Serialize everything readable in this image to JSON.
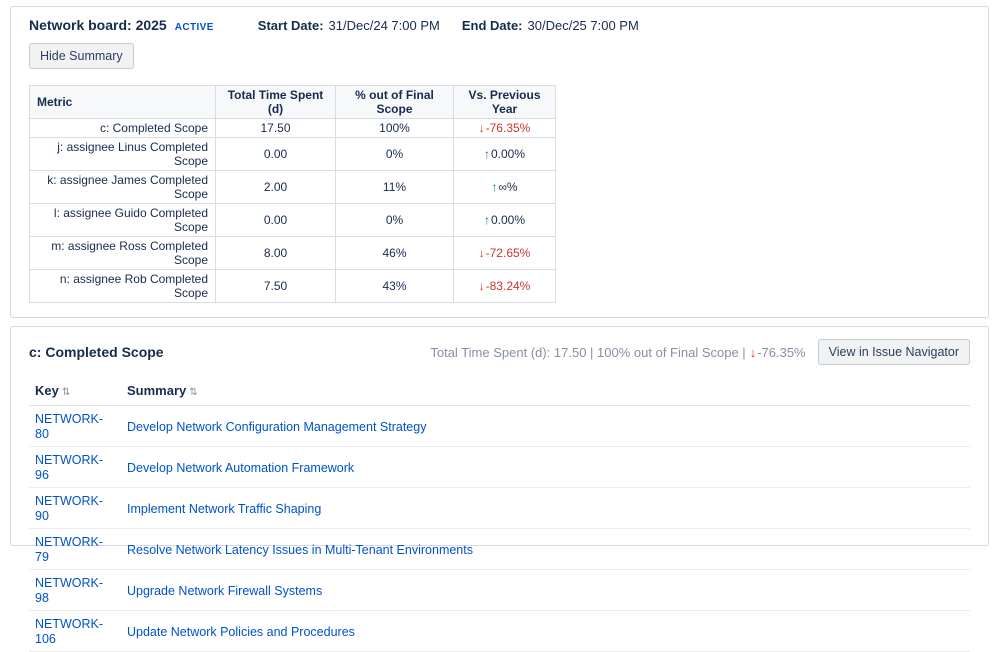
{
  "panel": {
    "title": "Network board: 2025",
    "badge": "ACTIVE",
    "start_date_label": "Start Date:",
    "start_date": "31/Dec/24 7:00 PM",
    "end_date_label": "End Date:",
    "end_date": "30/Dec/25 7:00 PM",
    "hide_summary_label": "Hide Summary"
  },
  "colors": {
    "link_blue": "#0052cc",
    "trend_down_red": "#de350b",
    "trend_up_green": "#00875a"
  },
  "icons": {
    "sort_icon": "⇅",
    "arrow_down": "↓",
    "arrow_up": "↑"
  },
  "metric_table": {
    "headers": [
      "Metric",
      "Total Time Spent (d)",
      "% out of Final Scope",
      "Vs. Previous Year"
    ],
    "rows": [
      {
        "metric": "c: Completed Scope",
        "time": "17.50",
        "pct": "100%",
        "dir": "down",
        "arrow": "↓",
        "trend": "-76.35%"
      },
      {
        "metric": "j: assignee Linus Completed Scope",
        "time": "0.00",
        "pct": "0%",
        "dir": "up",
        "arrow": "↑",
        "trend": "0.00%"
      },
      {
        "metric": "k: assignee James Completed Scope",
        "time": "2.00",
        "pct": "11%",
        "dir": "up",
        "arrow": "↑",
        "trend": "∞%"
      },
      {
        "metric": "l: assignee Guido Completed Scope",
        "time": "0.00",
        "pct": "0%",
        "dir": "up",
        "arrow": "↑",
        "trend": "0.00%"
      },
      {
        "metric": "m: assignee Ross Completed Scope",
        "time": "8.00",
        "pct": "46%",
        "dir": "down",
        "arrow": "↓",
        "trend": "-72.65%"
      },
      {
        "metric": "n: assignee Rob Completed Scope",
        "time": "7.50",
        "pct": "43%",
        "dir": "down",
        "arrow": "↓",
        "trend": "-83.24%"
      }
    ]
  },
  "detail": {
    "title": "c: Completed Scope",
    "stats": "Total Time Spent (d): 17.50 | 100% out of Final Scope |",
    "arrow": "↓",
    "trend": "-76.35%",
    "button_label": "View in Issue Navigator"
  },
  "issues_table": {
    "headers": [
      "Key",
      "Summary"
    ],
    "rows": [
      {
        "key": "NETWORK-80",
        "summary": "Develop Network Configuration Management Strategy"
      },
      {
        "key": "NETWORK-96",
        "summary": "Develop Network Automation Framework"
      },
      {
        "key": "NETWORK-90",
        "summary": "Implement Network Traffic Shaping"
      },
      {
        "key": "NETWORK-79",
        "summary": "Resolve Network Latency Issues in Multi-Tenant Environments"
      },
      {
        "key": "NETWORK-98",
        "summary": "Upgrade Network Firewall Systems"
      },
      {
        "key": "NETWORK-106",
        "summary": "Update Network Policies and Procedures"
      }
    ]
  }
}
